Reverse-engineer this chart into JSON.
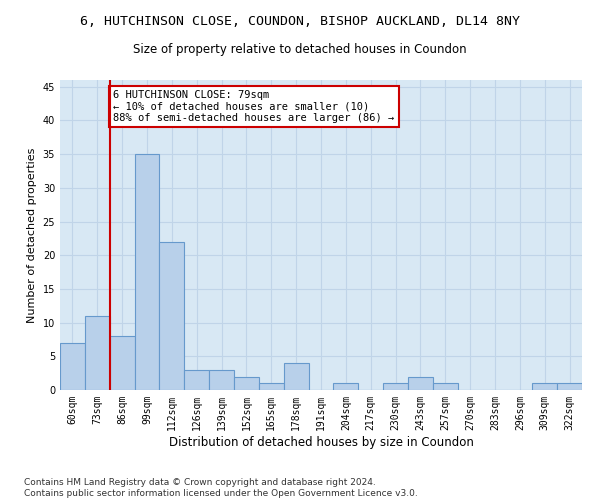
{
  "title1": "6, HUTCHINSON CLOSE, COUNDON, BISHOP AUCKLAND, DL14 8NY",
  "title2": "Size of property relative to detached houses in Coundon",
  "xlabel": "Distribution of detached houses by size in Coundon",
  "ylabel": "Number of detached properties",
  "categories": [
    "60sqm",
    "73sqm",
    "86sqm",
    "99sqm",
    "112sqm",
    "126sqm",
    "139sqm",
    "152sqm",
    "165sqm",
    "178sqm",
    "191sqm",
    "204sqm",
    "217sqm",
    "230sqm",
    "243sqm",
    "257sqm",
    "270sqm",
    "283sqm",
    "296sqm",
    "309sqm",
    "322sqm"
  ],
  "values": [
    7,
    11,
    8,
    35,
    22,
    3,
    3,
    2,
    1,
    4,
    0,
    1,
    0,
    1,
    2,
    1,
    0,
    0,
    0,
    1,
    1
  ],
  "bar_color": "#b8d0ea",
  "bar_edge_color": "#6699cc",
  "grid_color": "#c0d4e8",
  "background_color": "#d8e8f4",
  "vline_x": 1.5,
  "vline_color": "#cc0000",
  "annotation_text": "6 HUTCHINSON CLOSE: 79sqm\n← 10% of detached houses are smaller (10)\n88% of semi-detached houses are larger (86) →",
  "annotation_box_color": "#ffffff",
  "annotation_box_edge": "#cc0000",
  "ylim": [
    0,
    46
  ],
  "yticks": [
    0,
    5,
    10,
    15,
    20,
    25,
    30,
    35,
    40,
    45
  ],
  "footer_text": "Contains HM Land Registry data © Crown copyright and database right 2024.\nContains public sector information licensed under the Open Government Licence v3.0.",
  "title1_fontsize": 9.5,
  "title2_fontsize": 8.5,
  "xlabel_fontsize": 8.5,
  "ylabel_fontsize": 8,
  "tick_fontsize": 7,
  "annotation_fontsize": 7.5,
  "footer_fontsize": 6.5
}
